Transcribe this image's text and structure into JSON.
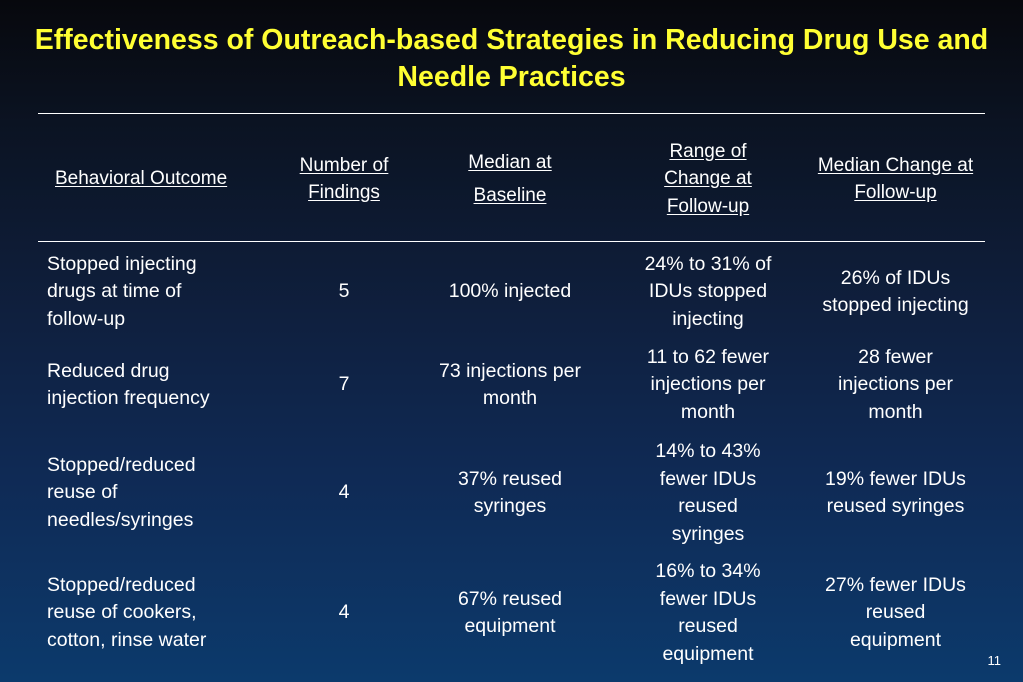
{
  "title": "Effectiveness of Outreach-based Strategies in Reducing Drug Use and Needle Practices",
  "table": {
    "headers": [
      "Behavioral Outcome",
      "Number of Findings",
      "Median at Baseline",
      "Range of Change at Follow-up",
      "Median Change at Follow-up"
    ],
    "rows": [
      [
        "Stopped injecting drugs at time of follow-up",
        "5",
        "100% injected",
        "24% to 31% of IDUs stopped injecting",
        "26% of IDUs stopped injecting"
      ],
      [
        "Reduced drug injection frequency",
        "7",
        "73 injections per month",
        "11 to 62 fewer injections per month",
        "28 fewer injections per month"
      ],
      [
        "Stopped/reduced reuse of needles/syringes",
        "4",
        "37% reused syringes",
        "14% to 43% fewer IDUs reused syringes",
        "19% fewer IDUs reused syringes"
      ],
      [
        "Stopped/reduced reuse of cookers, cotton, rinse water",
        "4",
        "67% reused equipment",
        "16% to 34% fewer IDUs reused equipment",
        "27% fewer IDUs reused equipment"
      ]
    ]
  },
  "page_number": "11",
  "colors": {
    "title": "#ffff33",
    "text": "#ffffff",
    "background_top": "#07080d",
    "background_bottom": "#0c3a6c"
  }
}
